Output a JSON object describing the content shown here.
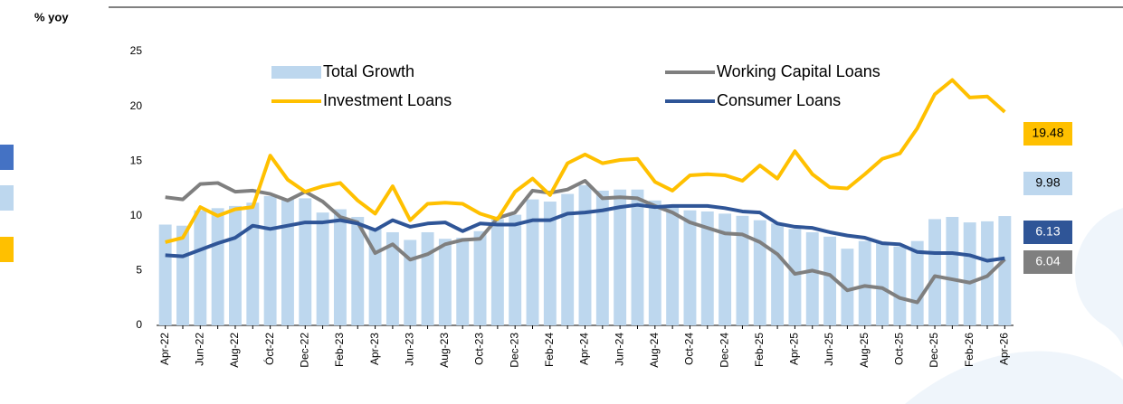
{
  "chart_data": {
    "type": "bar-line",
    "unit_label": "% yoy",
    "categories": [
      "Apr-22",
      null,
      "Jun-22",
      null,
      "Aug-22",
      null,
      "Óct-22",
      null,
      "Dec-22",
      null,
      "Feb-23",
      null,
      "Apr-23",
      null,
      "Jun-23",
      null,
      "Aug-23",
      null,
      "Oct-23",
      null,
      "Dec-23",
      null,
      "Feb-24",
      null,
      "Apr-24",
      null,
      "Jun-24",
      null,
      "Aug-24",
      null,
      "Oct-24",
      null,
      "Dec-24",
      null,
      "Feb-25",
      null,
      "Apr-25",
      null,
      "Jun-25",
      null,
      "Aug-25",
      null,
      "Oct-25",
      null,
      "Dec-25",
      null,
      "Feb-26",
      null,
      "Apr-26"
    ],
    "series": [
      {
        "name": "Total Growth",
        "kind": "bar",
        "color": "#bdd7ee",
        "label_text_color": "#000000",
        "values": [
          9.2,
          9.1,
          10.5,
          10.7,
          10.9,
          11.2,
          11.8,
          11.5,
          11.6,
          10.3,
          10.6,
          9.9,
          8.8,
          8.5,
          7.8,
          8.5,
          7.9,
          8.0,
          8.6,
          9.7,
          10.1,
          11.5,
          11.3,
          12.0,
          12.8,
          12.3,
          12.4,
          12.4,
          11.4,
          10.8,
          10.5,
          10.4,
          10.2,
          10.0,
          9.6,
          9.3,
          8.8,
          8.5,
          8.1,
          7.0,
          7.7,
          7.6,
          7.2,
          7.7,
          9.7,
          9.9,
          9.4,
          9.5,
          9.98
        ]
      },
      {
        "name": "Working Capital Loans",
        "kind": "line",
        "color": "#7f7f7f",
        "label_text_color": "#ffffff",
        "values": [
          11.7,
          11.5,
          12.9,
          13.0,
          12.2,
          12.3,
          12.0,
          11.4,
          12.2,
          11.3,
          9.9,
          9.4,
          6.6,
          7.4,
          6.0,
          6.5,
          7.4,
          7.8,
          7.9,
          9.8,
          10.3,
          12.3,
          12.1,
          12.4,
          13.2,
          11.6,
          11.7,
          11.6,
          10.9,
          10.3,
          9.4,
          8.9,
          8.4,
          8.3,
          7.6,
          6.5,
          4.7,
          5.0,
          4.6,
          3.2,
          3.6,
          3.4,
          2.5,
          2.1,
          4.5,
          4.2,
          3.9,
          4.5,
          6.04
        ]
      },
      {
        "name": "Investment Loans",
        "kind": "line",
        "color": "#ffc000",
        "label_text_color": "#000000",
        "values": [
          7.6,
          8.0,
          10.8,
          10.0,
          10.6,
          10.8,
          15.5,
          13.3,
          12.2,
          12.7,
          13.0,
          11.4,
          10.2,
          12.7,
          9.6,
          11.1,
          11.2,
          11.1,
          10.2,
          9.7,
          12.2,
          13.4,
          11.9,
          14.8,
          15.6,
          14.8,
          15.1,
          15.2,
          13.1,
          12.3,
          13.7,
          13.8,
          13.7,
          13.2,
          14.6,
          13.4,
          15.9,
          13.8,
          12.6,
          12.5,
          13.8,
          15.2,
          15.7,
          18.0,
          21.1,
          22.4,
          20.8,
          20.9,
          19.48
        ]
      },
      {
        "name": "Consumer Loans",
        "kind": "line",
        "color": "#2f5597",
        "label_text_color": "#ffffff",
        "values": [
          6.4,
          6.3,
          6.9,
          7.5,
          8.0,
          9.1,
          8.8,
          9.1,
          9.4,
          9.4,
          9.6,
          9.3,
          8.7,
          9.6,
          9.0,
          9.3,
          9.4,
          8.6,
          9.3,
          9.2,
          9.2,
          9.6,
          9.6,
          10.2,
          10.3,
          10.5,
          10.8,
          11.0,
          10.8,
          10.9,
          10.9,
          10.9,
          10.7,
          10.4,
          10.3,
          9.3,
          9.0,
          8.9,
          8.5,
          8.2,
          8.0,
          7.5,
          7.4,
          6.7,
          6.6,
          6.6,
          6.4,
          5.9,
          6.13
        ]
      }
    ],
    "ylim": [
      0,
      25
    ],
    "yticks": [
      0,
      5,
      10,
      15,
      20,
      25
    ],
    "grid": false,
    "legend": "upper"
  }
}
